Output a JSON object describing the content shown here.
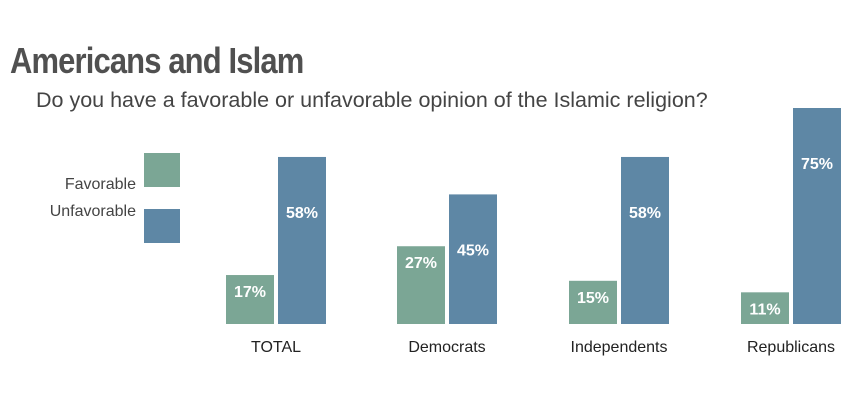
{
  "chart_data": {
    "type": "bar",
    "title": "Americans and Islam",
    "subtitle": "Do you have a favorable or unfavorable opinion of the Islamic religion?",
    "categories": [
      "TOTAL",
      "Democrats",
      "Independents",
      "Republicans"
    ],
    "series": [
      {
        "name": "Favorable",
        "values": [
          17,
          27,
          15,
          11
        ],
        "labels": [
          "17%",
          "27%",
          "15%",
          "11%"
        ],
        "color": "#7ba695"
      },
      {
        "name": "Unfavorable",
        "values": [
          58,
          45,
          58,
          75
        ],
        "labels": [
          "58%",
          "45%",
          "58%",
          "75%"
        ],
        "color": "#5e87a5"
      }
    ],
    "ylim": [
      0,
      75
    ],
    "grid": false,
    "legend_position": "left"
  }
}
